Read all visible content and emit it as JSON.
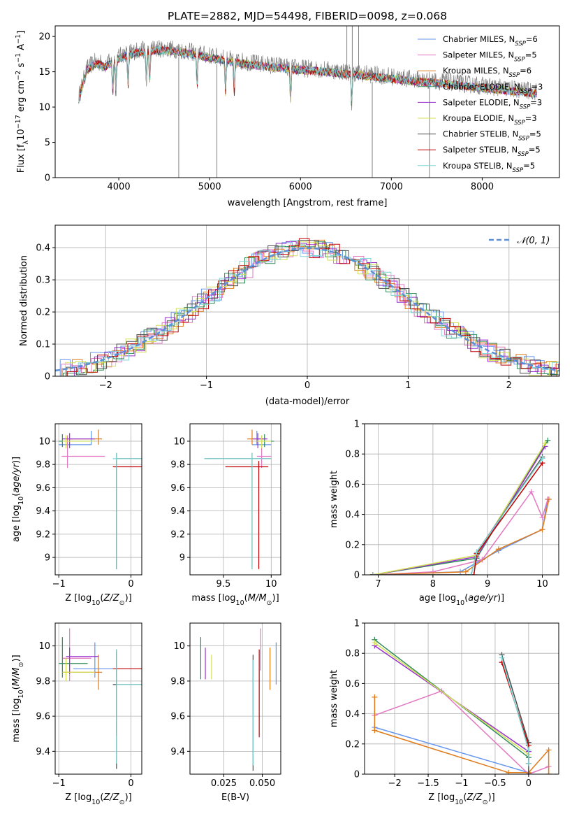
{
  "figure": {
    "title": "PLATE=2882, MJD=54498, FIBERID=0098, z=0.068"
  },
  "colors": {
    "models": [
      "#6495ed",
      "#e377c2",
      "#e07b1a",
      "#2e8b57",
      "#9932cc",
      "#d4e157",
      "#4d4d4d",
      "#c00000",
      "#7fd4d4"
    ],
    "data": "#808080",
    "gauss": "#5b8fd8"
  },
  "chart_data": [
    {
      "id": "spectrum",
      "type": "line",
      "title": "PLATE=2882, MJD=54498, FIBERID=0098, z=0.068",
      "xlabel": "wavelength [Angstrom, rest frame]",
      "ylabel": "Flux [fλ10⁻¹⁷ erg cm⁻² s⁻¹ A⁻¹]",
      "xlim": [
        3300,
        8850
      ],
      "ylim": [
        0,
        21.5
      ],
      "xticks": [
        4000,
        5000,
        6000,
        7000,
        8000
      ],
      "yticks": [
        0,
        5,
        10,
        15,
        20
      ],
      "grid": false,
      "legend_position": "top-right",
      "continuum_nodes": [
        [
          3560,
          11.5
        ],
        [
          3650,
          15.5
        ],
        [
          3750,
          16.5
        ],
        [
          3850,
          16.0
        ],
        [
          3950,
          16.8
        ],
        [
          4050,
          17.5
        ],
        [
          4200,
          18.0
        ],
        [
          4400,
          18.3
        ],
        [
          4600,
          18.2
        ],
        [
          4800,
          17.8
        ],
        [
          5000,
          17.3
        ],
        [
          5200,
          16.8
        ],
        [
          5500,
          16.2
        ],
        [
          5800,
          15.8
        ],
        [
          6000,
          15.5
        ],
        [
          6200,
          15.4
        ],
        [
          6500,
          15.0
        ],
        [
          6800,
          14.6
        ],
        [
          7200,
          14.0
        ],
        [
          7600,
          13.6
        ],
        [
          8000,
          13.0
        ],
        [
          8300,
          12.6
        ],
        [
          8600,
          12.2
        ]
      ],
      "data_x_range": [
        3560,
        8600
      ],
      "legend": [
        {
          "label": "Chabrier MILES, N",
          "nssp": "=6"
        },
        {
          "label": "Salpeter MILES, N",
          "nssp": "=5"
        },
        {
          "label": "Kroupa MILES, N",
          "nssp": "=6"
        },
        {
          "label": "Chabrier ELODIE, N",
          "nssp": "=3"
        },
        {
          "label": "Salpeter ELODIE, N",
          "nssp": "=3"
        },
        {
          "label": "Kroupa ELODIE, N",
          "nssp": "=3"
        },
        {
          "label": "Chabrier STELIB, N",
          "nssp": "=5"
        },
        {
          "label": "Salpeter STELIB, N",
          "nssp": "=5"
        },
        {
          "label": "Kroupa STELIB, N",
          "nssp": "=5"
        }
      ],
      "legend_subscript": "SSP"
    },
    {
      "id": "residuals",
      "type": "histogram",
      "xlabel": "(data-model)/error",
      "ylabel": "Normed distribution",
      "xlim": [
        -2.5,
        2.5
      ],
      "ylim": [
        0,
        0.47
      ],
      "xticks": [
        -2,
        -1,
        0,
        1,
        2
      ],
      "yticks": [
        0.0,
        0.1,
        0.2,
        0.3,
        0.4
      ],
      "grid": true,
      "legend_position": "top-right",
      "reference_curve": {
        "label": "𝒩(0, 1)",
        "mean": 0,
        "sigma": 1
      },
      "bin_width": 0.1
    },
    {
      "id": "age-vs-Z",
      "type": "errorbar",
      "xlabel": "Z [log10(Z/Z⊙)]",
      "ylabel": "age  [log10(age/yr)]",
      "xlim": [
        -1.05,
        0.15
      ],
      "ylim": [
        8.85,
        10.15
      ],
      "xticks": [
        -1,
        0
      ],
      "yticks": [
        9.0,
        9.2,
        9.4,
        9.6,
        9.8,
        10.0
      ],
      "grid": true,
      "points": [
        {
          "x": -0.55,
          "xerr": [
            0.45,
            0.0
          ],
          "y": 9.97,
          "yerr": [
            0.0,
            0.12
          ]
        },
        {
          "x": -0.88,
          "xerr": [
            0.08,
            0.52
          ],
          "y": 9.87,
          "yerr": [
            0.1,
            0.18
          ]
        },
        {
          "x": -0.45,
          "xerr": [
            0.45,
            0.05
          ],
          "y": 10.02,
          "yerr": [
            0.05,
            0.08
          ]
        },
        {
          "x": -0.95,
          "xerr": [
            0.05,
            0.45
          ],
          "y": 10.0,
          "yerr": [
            0.05,
            0.06
          ]
        },
        {
          "x": -0.85,
          "xerr": [
            0.1,
            0.35
          ],
          "y": 10.02,
          "yerr": [
            0.08,
            0.05
          ]
        },
        {
          "x": -0.9,
          "xerr": [
            0.05,
            0.4
          ],
          "y": 10.0,
          "yerr": [
            0.06,
            0.05
          ]
        },
        {
          "x": -0.2,
          "xerr": [
            0.0,
            0.35
          ],
          "y": 9.85,
          "yerr": [
            0.95,
            0.05
          ]
        },
        {
          "x": -0.2,
          "xerr": [
            0.05,
            0.35
          ],
          "y": 9.78,
          "yerr": [
            0.88,
            0.05
          ]
        },
        {
          "x": -0.2,
          "xerr": [
            0.05,
            0.35
          ],
          "y": 9.85,
          "yerr": [
            0.95,
            0.05
          ]
        }
      ]
    },
    {
      "id": "age-vs-mass",
      "type": "errorbar",
      "xlabel": "mass [log10(M/M⊙)]",
      "ylabel": "",
      "xlim": [
        9.15,
        10.1
      ],
      "ylim": [
        8.85,
        10.15
      ],
      "xticks": [
        9.5,
        10.0
      ],
      "yticks": [
        9.0,
        9.2,
        9.4,
        9.6,
        9.8,
        10.0
      ],
      "grid": true,
      "points": [
        {
          "x": 9.85,
          "xerr": [
            0.05,
            0.15
          ],
          "y": 9.97,
          "yerr": [
            0.0,
            0.12
          ]
        },
        {
          "x": 9.9,
          "xerr": [
            0.05,
            0.1
          ],
          "y": 9.87,
          "yerr": [
            0.1,
            0.18
          ]
        },
        {
          "x": 9.8,
          "xerr": [
            0.05,
            0.15
          ],
          "y": 10.02,
          "yerr": [
            0.05,
            0.08
          ]
        },
        {
          "x": 9.93,
          "xerr": [
            0.05,
            0.1
          ],
          "y": 10.0,
          "yerr": [
            0.05,
            0.06
          ]
        },
        {
          "x": 9.86,
          "xerr": [
            0.05,
            0.1
          ],
          "y": 10.02,
          "yerr": [
            0.08,
            0.05
          ]
        },
        {
          "x": 9.9,
          "xerr": [
            0.05,
            0.1
          ],
          "y": 10.0,
          "yerr": [
            0.06,
            0.05
          ]
        },
        {
          "x": 9.8,
          "xerr": [
            0.5,
            0.2
          ],
          "y": 9.85,
          "yerr": [
            0.95,
            0.05
          ]
        },
        {
          "x": 9.87,
          "xerr": [
            0.35,
            0.1
          ],
          "y": 9.78,
          "yerr": [
            0.88,
            0.05
          ]
        },
        {
          "x": 9.8,
          "xerr": [
            0.5,
            0.2
          ],
          "y": 9.85,
          "yerr": [
            0.95,
            0.05
          ]
        }
      ]
    },
    {
      "id": "weight-vs-age",
      "type": "line",
      "xlabel": "age  [log10(age/yr)]",
      "ylabel": "mass weight",
      "xlim": [
        6.75,
        10.3
      ],
      "ylim": [
        0,
        1.0
      ],
      "xticks": [
        7,
        8,
        9,
        10
      ],
      "yticks": [
        0.0,
        0.2,
        0.4,
        0.6,
        0.8,
        1.0
      ],
      "grid": true,
      "series": [
        {
          "x": [
            6.9,
            8.5,
            9.2,
            10.0,
            10.1
          ],
          "y": [
            0.0,
            0.02,
            0.16,
            0.3,
            0.5
          ]
        },
        {
          "x": [
            6.9,
            8.0,
            8.9,
            9.8,
            10.0,
            10.1
          ],
          "y": [
            0.0,
            0.02,
            0.1,
            0.55,
            0.38,
            0.5
          ]
        },
        {
          "x": [
            6.9,
            8.6,
            9.2,
            10.0,
            10.12
          ],
          "y": [
            0.0,
            0.02,
            0.17,
            0.3,
            0.5
          ]
        },
        {
          "x": [
            6.9,
            8.8,
            10.1
          ],
          "y": [
            0.0,
            0.11,
            0.89
          ]
        },
        {
          "x": [
            6.9,
            8.8,
            10.05
          ],
          "y": [
            0.0,
            0.12,
            0.85
          ]
        },
        {
          "x": [
            6.9,
            8.8,
            10.05
          ],
          "y": [
            0.0,
            0.13,
            0.87
          ]
        },
        {
          "x": [
            6.9,
            8.7,
            8.8,
            10.0
          ],
          "y": [
            0.0,
            0.0,
            0.15,
            0.78
          ]
        },
        {
          "x": [
            6.9,
            8.75,
            8.8,
            10.0
          ],
          "y": [
            0.0,
            0.0,
            0.14,
            0.74
          ]
        },
        {
          "x": [
            6.9,
            8.7,
            8.8,
            10.0
          ],
          "y": [
            0.0,
            0.0,
            0.15,
            0.77
          ]
        }
      ]
    },
    {
      "id": "mass-vs-Z",
      "type": "errorbar",
      "xlabel": "Z [log10(Z/Z⊙)]",
      "ylabel": "mass [log10(M/M⊙)]",
      "xlim": [
        -1.05,
        0.15
      ],
      "ylim": [
        9.27,
        10.13
      ],
      "xticks": [
        -1,
        0
      ],
      "yticks": [
        9.4,
        9.6,
        9.8,
        10.0
      ],
      "grid": true,
      "points": [
        {
          "x": -0.5,
          "xerr": [
            0.3,
            0.25
          ],
          "y": 9.87,
          "yerr": [
            0.05,
            0.15
          ]
        },
        {
          "x": -0.85,
          "xerr": [
            0.1,
            0.3
          ],
          "y": 9.93,
          "yerr": [
            0.13,
            0.17
          ]
        },
        {
          "x": -0.45,
          "xerr": [
            0.5,
            0.05
          ],
          "y": 9.85,
          "yerr": [
            0.1,
            0.1
          ]
        },
        {
          "x": -0.95,
          "xerr": [
            0.05,
            0.35
          ],
          "y": 9.9,
          "yerr": [
            0.08,
            0.15
          ]
        },
        {
          "x": -0.85,
          "xerr": [
            0.05,
            0.4
          ],
          "y": 9.94,
          "yerr": [
            0.1,
            0.05
          ]
        },
        {
          "x": -0.9,
          "xerr": [
            0.05,
            0.4
          ],
          "y": 9.85,
          "yerr": [
            0.05,
            0.08
          ]
        },
        {
          "x": -0.2,
          "xerr": [
            0.05,
            0.35
          ],
          "y": 9.78,
          "yerr": [
            0.48,
            0.2
          ]
        },
        {
          "x": -0.2,
          "xerr": [
            0.05,
            0.35
          ],
          "y": 9.87,
          "yerr": [
            0.38,
            0.1
          ]
        },
        {
          "x": -0.2,
          "xerr": [
            0.0,
            0.35
          ],
          "y": 9.78,
          "yerr": [
            0.45,
            0.2
          ]
        }
      ]
    },
    {
      "id": "mass-vs-ebv",
      "type": "errorbar",
      "xlabel": "E(B-V)",
      "ylabel": "",
      "xlim": [
        0.003,
        0.062
      ],
      "ylim": [
        9.27,
        10.13
      ],
      "xticks": [
        0.025,
        0.05
      ],
      "xticklabels": [
        "0.025",
        "0.050"
      ],
      "yticks": [
        9.4,
        9.6,
        9.8,
        10.0
      ],
      "grid": true,
      "points": [
        {
          "x": 0.059,
          "y": 9.9,
          "yerr": [
            0.12,
            0.12
          ]
        },
        {
          "x": 0.049,
          "y": 9.98,
          "yerr": [
            0.12,
            0.12
          ]
        },
        {
          "x": 0.055,
          "y": 9.87,
          "yerr": [
            0.12,
            0.12
          ]
        },
        {
          "x": 0.01,
          "y": 9.93,
          "yerr": [
            0.12,
            0.12
          ]
        },
        {
          "x": 0.013,
          "y": 9.9,
          "yerr": [
            0.09,
            0.09
          ]
        },
        {
          "x": 0.017,
          "y": 9.88,
          "yerr": [
            0.07,
            0.07
          ]
        },
        {
          "x": 0.044,
          "y": 9.62,
          "yerr": [
            0.33,
            0.33
          ]
        },
        {
          "x": 0.048,
          "y": 9.73,
          "yerr": [
            0.25,
            0.25
          ]
        },
        {
          "x": 0.044,
          "y": 9.62,
          "yerr": [
            0.3,
            0.3
          ]
        }
      ]
    },
    {
      "id": "weight-vs-Z",
      "type": "line",
      "xlabel": "Z [log10(Z/Z⊙)]",
      "ylabel": "mass weight",
      "xlim": [
        -2.45,
        0.45
      ],
      "ylim": [
        0,
        1.0
      ],
      "xticks": [
        -2.0,
        -1.5,
        -1.0,
        -0.5,
        0.0
      ],
      "yticks": [
        0.0,
        0.2,
        0.4,
        0.6,
        0.8,
        1.0
      ],
      "grid": true,
      "series": [
        {
          "x": [
            -2.3,
            0.0,
            0.0
          ],
          "y": [
            0.31,
            0.01,
            0.0
          ]
        },
        {
          "x": [
            0.3,
            0.0,
            -1.3,
            -2.3
          ],
          "y": [
            0.05,
            0.0,
            0.55,
            0.39
          ]
        },
        {
          "x": [
            -2.3,
            -2.3,
            -0.3,
            0.0,
            0.3,
            0.3
          ],
          "y": [
            0.51,
            0.29,
            0.01,
            0.01,
            0.16,
            0.0
          ]
        },
        {
          "x": [
            -2.3,
            0.0
          ],
          "y": [
            0.89,
            0.11
          ]
        },
        {
          "x": [
            -2.3,
            0.0
          ],
          "y": [
            0.85,
            0.15
          ]
        },
        {
          "x": [
            -2.3,
            0.0
          ],
          "y": [
            0.87,
            0.13
          ]
        },
        {
          "x": [
            -0.4,
            0.0,
            0.0
          ],
          "y": [
            0.79,
            0.21,
            0.0
          ]
        },
        {
          "x": [
            -0.4,
            0.0,
            0.0
          ],
          "y": [
            0.74,
            0.19,
            0.07
          ]
        },
        {
          "x": [
            -0.4,
            0.0,
            0.0
          ],
          "y": [
            0.77,
            0.16,
            0.07
          ]
        }
      ]
    }
  ]
}
